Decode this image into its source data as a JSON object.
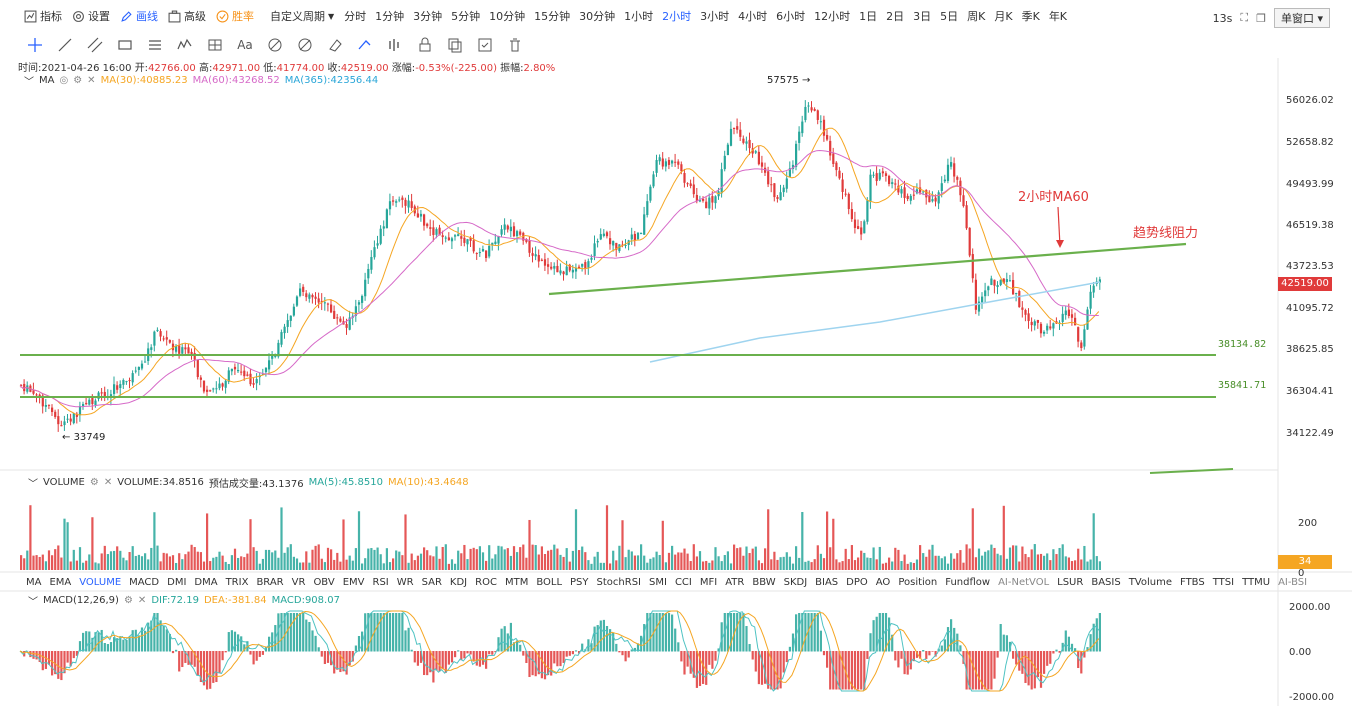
{
  "toolbar": {
    "indicators_label": "指标",
    "settings_label": "设置",
    "draw_label": "画线",
    "advanced_label": "高级",
    "winrate_label": "胜率",
    "custom_period_label": "自定义周期",
    "periods": [
      "分时",
      "1分钟",
      "3分钟",
      "5分钟",
      "10分钟",
      "15分钟",
      "30分钟",
      "1小时",
      "2小时",
      "3小时",
      "4小时",
      "6小时",
      "12小时",
      "1日",
      "2日",
      "3日",
      "5日",
      "周K",
      "月K",
      "季K",
      "年K"
    ],
    "active_period": "2小时",
    "countdown": "13s",
    "window_label": "单窗口"
  },
  "draw_tools": [
    "crosshair-icon",
    "trendline-icon",
    "channel-icon",
    "rectangle-icon",
    "parallel-lines-icon",
    "wave-icon",
    "measure-icon",
    "text-icon",
    "fib-icon",
    "hide-icon",
    "eraser-icon",
    "pen-icon",
    "magnet-icon",
    "lock-icon",
    "copy-icon",
    "save-icon",
    "delete-icon"
  ],
  "draw_text_tool": "Aa",
  "ohlc": {
    "time_label": "时间:",
    "time": "2021-04-26 16:00",
    "open_label": "开:",
    "open": "42766.00",
    "high_label": "高:",
    "high": "42971.00",
    "low_label": "低:",
    "low": "41774.00",
    "close_label": "收:",
    "close": "42519.00",
    "change_label": "涨幅:",
    "change": "-0.53%(-225.00)",
    "amplitude_label": "振幅:",
    "amplitude": "2.80%"
  },
  "ma": {
    "name": "MA",
    "ma30": "MA(30):40885.23",
    "ma60": "MA(60):43268.52",
    "ma365": "MA(365):42356.44"
  },
  "volume": {
    "name": "VOLUME",
    "value": "VOLUME:34.8516",
    "estimated": "预估成交量:43.1376",
    "ma5": "MA(5):45.8510",
    "ma10": "MA(10):43.4648",
    "tag": "34"
  },
  "macd": {
    "name": "MACD(12,26,9)",
    "dif": "DIF:72.19",
    "dea": "DEA:-381.84",
    "macd": "MACD:908.07"
  },
  "indicator_tabs": [
    "MA",
    "EMA",
    "VOLUME",
    "MACD",
    "DMI",
    "DMA",
    "TRIX",
    "BRAR",
    "VR",
    "OBV",
    "EMV",
    "RSI",
    "WR",
    "SAR",
    "KDJ",
    "ROC",
    "MTM",
    "BOLL",
    "PSY",
    "StochRSI",
    "SMI",
    "CCI",
    "MFI",
    "ATR",
    "BBW",
    "SKDJ",
    "BIAS",
    "DPO",
    "AO",
    "Position",
    "Fundflow",
    "AI-NetVOL",
    "LSUR",
    "BASIS",
    "TVolume",
    "FTBS",
    "TTSI",
    "TTMU",
    "AI-BSI"
  ],
  "price_axis": [
    "56026.02",
    "52658.82",
    "49493.99",
    "46519.38",
    "43723.53",
    "41095.72",
    "38625.85",
    "36304.41",
    "34122.49"
  ],
  "current_price": "42519.00",
  "volume_axis": [
    "200",
    "0"
  ],
  "macd_axis": [
    "2000.00",
    "0.00",
    "-2000.00"
  ],
  "annotations": {
    "ma60_label": "2小时MA60",
    "trend_label": "趋势线阻力",
    "level1": "38134.82",
    "level2": "35841.71",
    "high_marker": "57575",
    "low_marker": "33749"
  },
  "colors": {
    "up": "#26a69a",
    "down": "#e03a3a",
    "ma30": "#f5a623",
    "ma60": "#d66ac8",
    "ma365": "#9fd4ef",
    "trendline": "#6ab04c",
    "accent": "#2962ff"
  }
}
